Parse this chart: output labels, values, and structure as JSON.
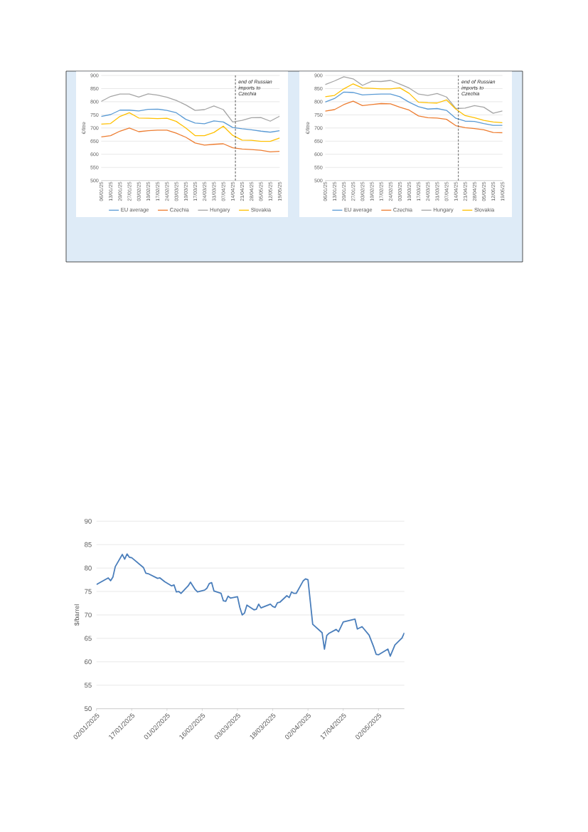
{
  "chart_data": [
    {
      "type": "line",
      "x": [
        "2025-01-06",
        "2025-01-13",
        "2025-01-20",
        "2025-01-27",
        "2025-02-03",
        "2025-02-10",
        "2025-02-17",
        "2025-02-24",
        "2025-03-03",
        "2025-03-10",
        "2025-03-17",
        "2025-03-24",
        "2025-03-31",
        "2025-04-07",
        "2025-04-14",
        "2025-04-21",
        "2025-04-28",
        "2025-05-05",
        "2025-05-12",
        "2025-05-19"
      ],
      "series": [
        {
          "name": "EU average",
          "color": "#5b9bd5",
          "values": [
            744,
            751,
            768,
            768,
            765,
            771,
            772,
            767,
            758,
            733,
            719,
            716,
            727,
            723,
            702,
            697,
            693,
            688,
            684,
            690
          ]
        },
        {
          "name": "Czechia",
          "color": "#ed7d31",
          "values": [
            666,
            671,
            688,
            700,
            686,
            690,
            692,
            692,
            680,
            665,
            643,
            635,
            638,
            640,
            625,
            620,
            618,
            615,
            609,
            611
          ]
        },
        {
          "name": "Hungary",
          "color": "#a5a5a5",
          "values": [
            801,
            820,
            829,
            829,
            818,
            830,
            825,
            817,
            805,
            788,
            767,
            770,
            784,
            770,
            723,
            729,
            739,
            740,
            726,
            745
          ]
        },
        {
          "name": "Slovakia",
          "color": "#ffc000",
          "values": [
            715,
            717,
            744,
            758,
            738,
            737,
            736,
            737,
            725,
            700,
            671,
            671,
            683,
            707,
            672,
            654,
            653,
            649,
            649,
            662
          ]
        }
      ],
      "ylabel": "€/litre",
      "xlim": [
        "2025-01-06",
        "2025-05-19"
      ],
      "xticks": [
        {
          "value": "2025-01-06",
          "label": "06/01/25"
        },
        {
          "value": "2025-01-13",
          "label": "13/01/25"
        },
        {
          "value": "2025-01-20",
          "label": "20/01/25"
        },
        {
          "value": "2025-01-27",
          "label": "27/01/25"
        },
        {
          "value": "2025-02-03",
          "label": "03/02/25"
        },
        {
          "value": "2025-02-10",
          "label": "10/02/25"
        },
        {
          "value": "2025-02-17",
          "label": "17/02/25"
        },
        {
          "value": "2025-02-24",
          "label": "24/02/25"
        },
        {
          "value": "2025-03-03",
          "label": "03/03/25"
        },
        {
          "value": "2025-03-10",
          "label": "10/03/25"
        },
        {
          "value": "2025-03-17",
          "label": "17/03/25"
        },
        {
          "value": "2025-03-24",
          "label": "24/03/25"
        },
        {
          "value": "2025-03-31",
          "label": "31/03/25"
        },
        {
          "value": "2025-04-07",
          "label": "07/04/25"
        },
        {
          "value": "2025-04-14",
          "label": "14/04/25"
        },
        {
          "value": "2025-04-21",
          "label": "21/04/25"
        },
        {
          "value": "2025-04-28",
          "label": "28/04/25"
        },
        {
          "value": "2025-05-05",
          "label": "05/05/25"
        },
        {
          "value": "2025-05-12",
          "label": "12/05/25"
        },
        {
          "value": "2025-05-19",
          "label": "19/05/25"
        }
      ],
      "ylim": [
        500,
        900
      ],
      "yticks": [
        500,
        550,
        600,
        650,
        700,
        750,
        800,
        850,
        900
      ],
      "grid": "y",
      "legend": "bottom",
      "ref_lines": [
        {
          "axis": "x",
          "value": "2025-04-16",
          "label": "end of Russian imports to Czechia",
          "color": "#404040",
          "line_style": "dashed"
        }
      ]
    },
    {
      "type": "line",
      "x": [
        "2025-01-06",
        "2025-01-13",
        "2025-01-20",
        "2025-01-27",
        "2025-02-03",
        "2025-02-10",
        "2025-02-17",
        "2025-02-24",
        "2025-03-03",
        "2025-03-10",
        "2025-03-17",
        "2025-03-24",
        "2025-03-31",
        "2025-04-07",
        "2025-04-14",
        "2025-04-21",
        "2025-04-28",
        "2025-05-05",
        "2025-05-12",
        "2025-05-19"
      ],
      "series": [
        {
          "name": "EU average",
          "color": "#5b9bd5",
          "values": [
            799,
            812,
            837,
            835,
            826,
            828,
            829,
            829,
            819,
            798,
            781,
            772,
            774,
            767,
            737,
            726,
            725,
            717,
            710,
            710
          ]
        },
        {
          "name": "Czechia",
          "color": "#ed7d31",
          "values": [
            764,
            770,
            789,
            802,
            785,
            789,
            793,
            792,
            779,
            768,
            746,
            739,
            738,
            733,
            709,
            701,
            698,
            693,
            683,
            682
          ]
        },
        {
          "name": "Hungary",
          "color": "#a5a5a5",
          "values": [
            865,
            879,
            895,
            887,
            862,
            878,
            877,
            881,
            867,
            852,
            829,
            824,
            831,
            818,
            774,
            776,
            785,
            779,
            756,
            765
          ]
        },
        {
          "name": "Slovakia",
          "color": "#ffc000",
          "values": [
            819,
            824,
            849,
            868,
            852,
            851,
            849,
            849,
            853,
            832,
            798,
            796,
            795,
            807,
            772,
            747,
            739,
            729,
            723,
            720
          ]
        }
      ],
      "ylabel": "€/litre",
      "xlim": [
        "2025-01-06",
        "2025-05-19"
      ],
      "xticks": [
        {
          "value": "2025-01-06",
          "label": "06/01/25"
        },
        {
          "value": "2025-01-13",
          "label": "13/01/25"
        },
        {
          "value": "2025-01-20",
          "label": "20/01/25"
        },
        {
          "value": "2025-01-27",
          "label": "27/01/25"
        },
        {
          "value": "2025-02-03",
          "label": "03/02/25"
        },
        {
          "value": "2025-02-10",
          "label": "10/02/25"
        },
        {
          "value": "2025-02-17",
          "label": "17/02/25"
        },
        {
          "value": "2025-02-24",
          "label": "24/02/25"
        },
        {
          "value": "2025-03-03",
          "label": "03/03/25"
        },
        {
          "value": "2025-03-10",
          "label": "10/03/25"
        },
        {
          "value": "2025-03-17",
          "label": "17/03/25"
        },
        {
          "value": "2025-03-24",
          "label": "24/03/25"
        },
        {
          "value": "2025-03-31",
          "label": "31/03/25"
        },
        {
          "value": "2025-04-07",
          "label": "07/04/25"
        },
        {
          "value": "2025-04-14",
          "label": "14/04/25"
        },
        {
          "value": "2025-04-21",
          "label": "21/04/25"
        },
        {
          "value": "2025-04-28",
          "label": "28/04/25"
        },
        {
          "value": "2025-05-05",
          "label": "05/05/25"
        },
        {
          "value": "2025-05-12",
          "label": "12/05/25"
        },
        {
          "value": "2025-05-19",
          "label": "19/05/25"
        }
      ],
      "ylim": [
        500,
        900
      ],
      "yticks": [
        500,
        550,
        600,
        650,
        700,
        750,
        800,
        850,
        900
      ],
      "grid": "y",
      "legend": "bottom",
      "ref_lines": [
        {
          "axis": "x",
          "value": "2025-04-16",
          "label": "end of Russian imports to Czechia",
          "color": "#404040",
          "line_style": "dashed"
        }
      ]
    },
    {
      "type": "line",
      "x": [
        "2025-01-02",
        "2025-01-07",
        "2025-01-08",
        "2025-01-09",
        "2025-01-10",
        "2025-01-13",
        "2025-01-14",
        "2025-01-15",
        "2025-01-16",
        "2025-01-17",
        "2025-01-22",
        "2025-01-23",
        "2025-01-24",
        "2025-01-28",
        "2025-01-29",
        "2025-01-31",
        "2025-02-03",
        "2025-02-04",
        "2025-02-05",
        "2025-02-06",
        "2025-02-07",
        "2025-02-10",
        "2025-02-11",
        "2025-02-13",
        "2025-02-14",
        "2025-02-17",
        "2025-02-18",
        "2025-02-19",
        "2025-02-20",
        "2025-02-21",
        "2025-02-24",
        "2025-02-25",
        "2025-02-26",
        "2025-02-27",
        "2025-02-28",
        "2025-03-03",
        "2025-03-04",
        "2025-03-05",
        "2025-03-06",
        "2025-03-07",
        "2025-03-10",
        "2025-03-11",
        "2025-03-12",
        "2025-03-13",
        "2025-03-17",
        "2025-03-18",
        "2025-03-19",
        "2025-03-20",
        "2025-03-21",
        "2025-03-24",
        "2025-03-25",
        "2025-03-26",
        "2025-03-27",
        "2025-03-28",
        "2025-03-31",
        "2025-04-01",
        "2025-04-02",
        "2025-04-04",
        "2025-04-08",
        "2025-04-09",
        "2025-04-10",
        "2025-04-11",
        "2025-04-14",
        "2025-04-15",
        "2025-04-17",
        "2025-04-22",
        "2025-04-23",
        "2025-04-25",
        "2025-04-28",
        "2025-04-30",
        "2025-05-01",
        "2025-05-02",
        "2025-05-06",
        "2025-05-07",
        "2025-05-09",
        "2025-05-12",
        "2025-05-13"
      ],
      "series": [
        {
          "color": "#4a7ebb",
          "values": [
            76.5,
            77.9,
            77.3,
            78.1,
            80.3,
            82.9,
            81.9,
            83.0,
            82.3,
            82.2,
            80.1,
            78.9,
            78.8,
            77.8,
            77.9,
            77.1,
            76.2,
            76.4,
            74.9,
            75.0,
            74.6,
            76.2,
            77.0,
            75.4,
            74.9,
            75.3,
            75.7,
            76.7,
            76.9,
            75.1,
            74.6,
            73.0,
            72.9,
            74.0,
            73.6,
            73.9,
            71.6,
            70.0,
            70.4,
            72.1,
            71.1,
            71.2,
            72.3,
            71.5,
            72.3,
            71.8,
            71.6,
            72.6,
            72.7,
            74.1,
            73.7,
            74.9,
            74.6,
            74.6,
            77.3,
            77.7,
            77.5,
            68.0,
            66.2,
            62.7,
            65.6,
            66.1,
            66.9,
            66.4,
            68.5,
            69.1,
            67.0,
            67.5,
            65.7,
            63.1,
            61.6,
            61.5,
            62.7,
            61.2,
            63.6,
            65.1,
            66.2
          ]
        }
      ],
      "ylabel": "$/barrel",
      "xlim": [
        "2025-01-02",
        "2025-05-13"
      ],
      "xticks": [
        {
          "value": "2025-01-02",
          "label": "02/01/2025"
        },
        {
          "value": "2025-01-17",
          "label": "17/01/2025"
        },
        {
          "value": "2025-02-01",
          "label": "01/02/2025"
        },
        {
          "value": "2025-02-16",
          "label": "16/02/2025"
        },
        {
          "value": "2025-03-03",
          "label": "03/03/2025"
        },
        {
          "value": "2025-03-18",
          "label": "18/03/2025"
        },
        {
          "value": "2025-04-02",
          "label": "02/04/2025"
        },
        {
          "value": "2025-04-17",
          "label": "17/04/2025"
        },
        {
          "value": "2025-05-02",
          "label": "02/05/2025"
        }
      ],
      "ylim": [
        50,
        90
      ],
      "yticks": [
        50,
        55,
        60,
        65,
        70,
        75,
        80,
        85,
        90
      ],
      "grid": "y"
    }
  ]
}
